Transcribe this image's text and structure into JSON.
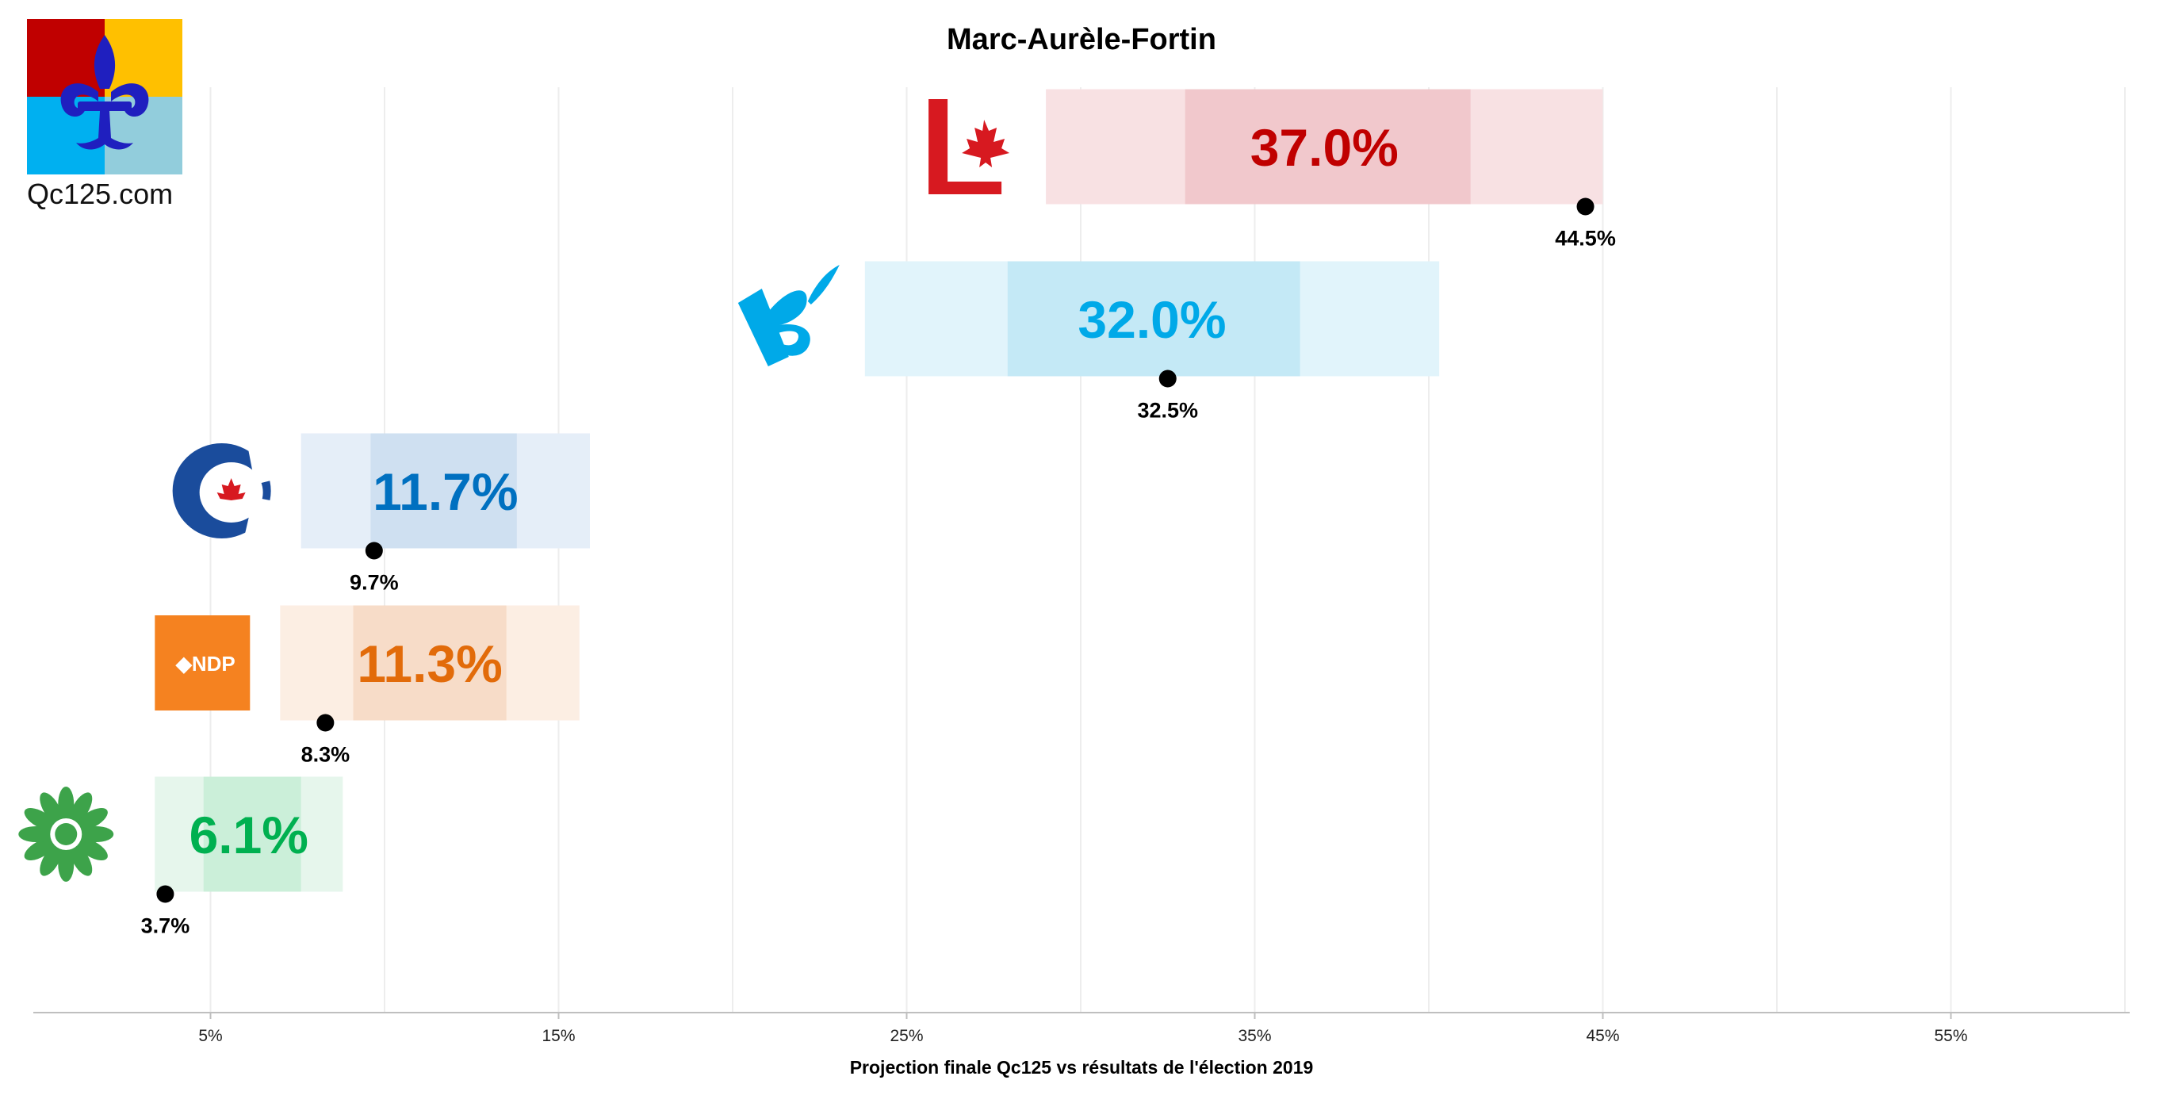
{
  "brand": {
    "site": "Qc125.com",
    "logo": "quebec-fleur-de-lis-logo"
  },
  "chart_data": {
    "type": "bar",
    "title": "Marc-Aurèle-Fortin",
    "xlabel": "Projection finale Qc125 vs résultats de l'élection 2019",
    "xlim": [
      0,
      60
    ],
    "ticks": [
      5,
      15,
      25,
      35,
      45,
      55
    ],
    "tick_labels": [
      "5%",
      "15%",
      "25%",
      "35%",
      "45%",
      "55%"
    ],
    "grid": true,
    "series": [
      {
        "party_logo": "liberal-logo",
        "projection": 37.0,
        "label": "37.0%",
        "likely_range": [
          33.0,
          41.2
        ],
        "full_range": [
          29.0,
          45.0
        ],
        "result_2019": 44.5,
        "result_label": "44.5%",
        "color": "#C00000",
        "light": "#F8E1E3",
        "mid": "#F1C8CC"
      },
      {
        "party_logo": "bloc-quebecois-logo",
        "projection": 32.0,
        "label": "32.0%",
        "likely_range": [
          27.9,
          36.3
        ],
        "full_range": [
          23.8,
          40.3
        ],
        "result_2019": 32.5,
        "result_label": "32.5%",
        "color": "#00A9E8",
        "light": "#E1F4FB",
        "mid": "#C4E9F6"
      },
      {
        "party_logo": "conservative-logo",
        "projection": 11.7,
        "label": "11.7%",
        "likely_range": [
          9.6,
          13.8
        ],
        "full_range": [
          7.6,
          15.9
        ],
        "result_2019": 9.7,
        "result_label": "9.7%",
        "color": "#0070C0",
        "light": "#E5EEF8",
        "mid": "#CFE0F1"
      },
      {
        "party_logo": "ndp-logo",
        "projection": 11.3,
        "label": "11.3%",
        "likely_range": [
          9.1,
          13.5
        ],
        "full_range": [
          7.0,
          15.6
        ],
        "result_2019": 8.3,
        "result_label": "8.3%",
        "color": "#E26B0A",
        "light": "#FCEEE3",
        "mid": "#F7DCC8"
      },
      {
        "party_logo": "green-party-logo",
        "projection": 6.1,
        "label": "6.1%",
        "likely_range": [
          4.8,
          7.6
        ],
        "full_range": [
          3.4,
          8.8
        ],
        "result_2019": 3.7,
        "result_label": "3.7%",
        "color": "#00B050",
        "light": "#E6F6EC",
        "mid": "#CBEFD9"
      }
    ]
  }
}
